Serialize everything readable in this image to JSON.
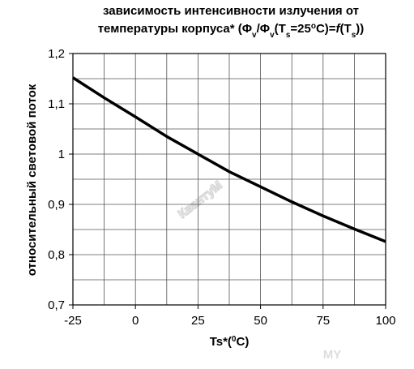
{
  "chart_data": {
    "type": "line",
    "title_lines": [
      [
        {
          "text": "зависимость интенсивности излучения от"
        }
      ],
      [
        {
          "text": "температуры корпуса* (Φ"
        },
        {
          "text": "v",
          "style": "sub"
        },
        {
          "text": "/Φ"
        },
        {
          "text": "v",
          "style": "sub"
        },
        {
          "text": "(T"
        },
        {
          "text": "s",
          "style": "sub"
        },
        {
          "text": "=25"
        },
        {
          "text": "o",
          "style": "sup"
        },
        {
          "text": "C)="
        },
        {
          "text": "f",
          "style": "italic"
        },
        {
          "text": "(T"
        },
        {
          "text": "s",
          "style": "sub"
        },
        {
          "text": "))"
        }
      ]
    ],
    "xlabel": [
      {
        "text": "Ts*("
      },
      {
        "text": "0",
        "style": "sup"
      },
      {
        "text": "C)"
      }
    ],
    "ylabel": "относительный световой поток",
    "annotations": [
      "КвантуМ",
      "MY"
    ],
    "x": [
      -25,
      -12.5,
      0,
      12.5,
      25,
      37.5,
      50,
      62.5,
      75,
      87.5,
      100
    ],
    "series": [
      {
        "color": "#000000",
        "values": [
          1.152,
          1.112,
          1.074,
          1.035,
          1.0,
          0.965,
          0.935,
          0.905,
          0.877,
          0.851,
          0.826
        ]
      }
    ],
    "xlim": [
      -25,
      100
    ],
    "xticks": [
      -25,
      0,
      25,
      50,
      75,
      100
    ],
    "xminor": [
      -12.5,
      12.5,
      37.5,
      62.5,
      87.5
    ],
    "ylim": [
      0.7,
      1.2
    ],
    "yticks": [
      {
        "value": 0.7,
        "label": "0,7"
      },
      {
        "value": 0.8,
        "label": "0,8"
      },
      {
        "value": 0.9,
        "label": "0,9"
      },
      1,
      {
        "value": 1.1,
        "label": "1,1"
      },
      {
        "value": 1.2,
        "label": "1,2"
      }
    ],
    "yminor": [
      0.75,
      0.85,
      0.95,
      1.05,
      1.15
    ],
    "grid": true
  }
}
